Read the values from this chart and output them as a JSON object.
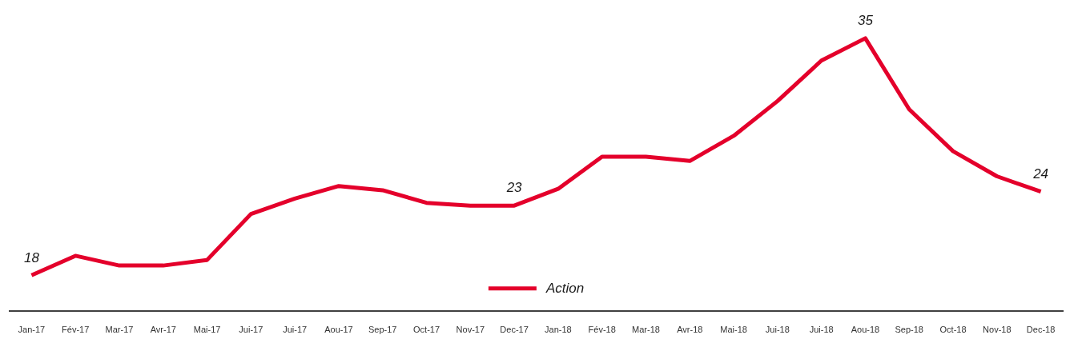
{
  "chart_data": {
    "type": "line",
    "categories": [
      "Jan-17",
      "Fév-17",
      "Mar-17",
      "Avr-17",
      "Mai-17",
      "Jui-17",
      "Jui-17",
      "Aou-17",
      "Sep-17",
      "Oct-17",
      "Nov-17",
      "Dec-17",
      "Jan-18",
      "Fév-18",
      "Mar-18",
      "Avr-18",
      "Mai-18",
      "Jui-18",
      "Jui-18",
      "Aou-18",
      "Sep-18",
      "Oct-18",
      "Nov-18",
      "Dec-18"
    ],
    "series": [
      {
        "name": "Action",
        "color": "#e4002b",
        "values": [
          18,
          19.4,
          18.7,
          18.7,
          19.1,
          22.4,
          23.5,
          24.4,
          24.1,
          23.2,
          23.0,
          23,
          24.2,
          26.5,
          26.5,
          26.2,
          28.0,
          30.5,
          33.4,
          35,
          29.9,
          26.9,
          25.1,
          24
        ],
        "value_labels": [
          "18",
          null,
          null,
          null,
          null,
          null,
          null,
          null,
          null,
          null,
          null,
          "23",
          null,
          null,
          null,
          null,
          null,
          null,
          null,
          "35",
          null,
          null,
          null,
          "24"
        ]
      }
    ],
    "legend": "bottom",
    "marker": "none",
    "line_style": "solid",
    "grid": false
  }
}
